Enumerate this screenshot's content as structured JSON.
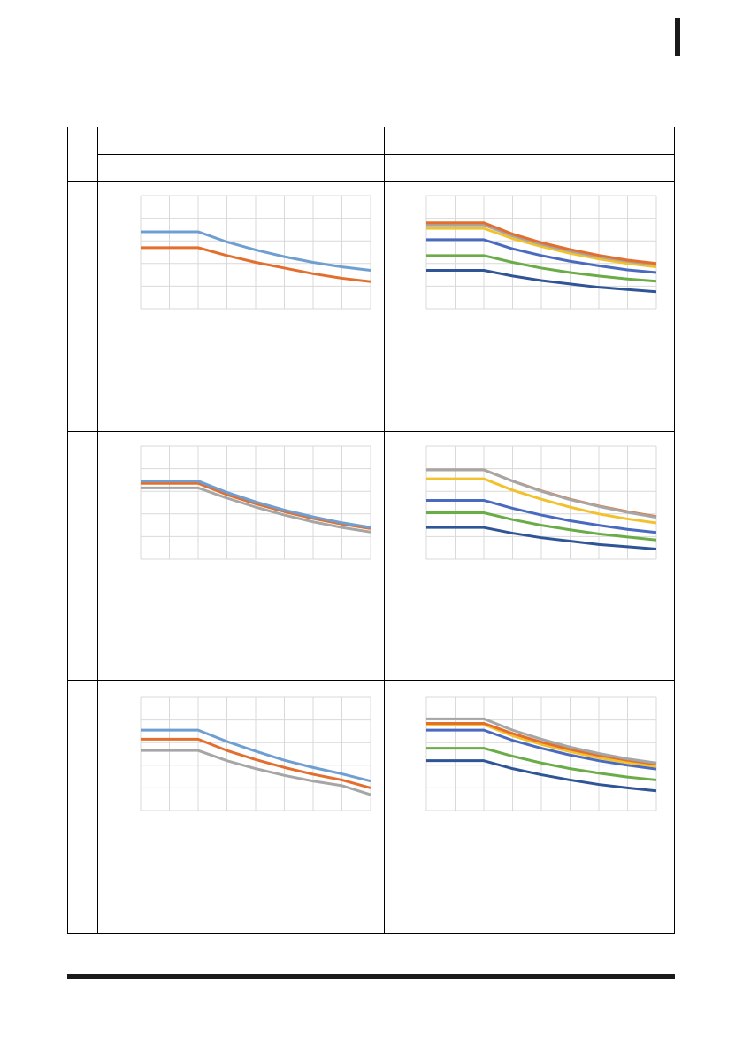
{
  "header": {
    "col_left": "",
    "col_right": "",
    "sub_left": "",
    "sub_right": ""
  },
  "rows": [
    {
      "label": "",
      "left_caption": "",
      "right_caption": ""
    },
    {
      "label": "",
      "left_caption": "",
      "right_caption": ""
    },
    {
      "label": "",
      "left_caption": "",
      "right_caption": ""
    }
  ],
  "colors": {
    "blue": "#6f9fd1",
    "orange": "#e36f2e",
    "gray": "#a6a6a6",
    "yellow": "#f2c12e",
    "darkblue": "#4a6ac0",
    "green": "#6aac47",
    "navy": "#2f5597",
    "grid": "#d9d9d9"
  },
  "chart_data": [
    {
      "type": "line",
      "x": [
        0,
        1,
        2,
        3,
        4,
        5,
        6,
        7,
        8
      ],
      "ylim": [
        0,
        5
      ],
      "series": [
        {
          "color": "orange",
          "values": [
            2.7,
            2.7,
            2.7,
            2.35,
            2.05,
            1.8,
            1.55,
            1.35,
            1.2
          ]
        },
        {
          "color": "blue",
          "values": [
            3.4,
            3.4,
            3.4,
            2.95,
            2.6,
            2.3,
            2.05,
            1.85,
            1.7
          ]
        }
      ]
    },
    {
      "type": "line",
      "x": [
        0,
        1,
        2,
        3,
        4,
        5,
        6,
        7,
        8
      ],
      "ylim": [
        0,
        5
      ],
      "series": [
        {
          "color": "navy",
          "values": [
            1.7,
            1.7,
            1.7,
            1.45,
            1.25,
            1.1,
            0.95,
            0.85,
            0.75
          ]
        },
        {
          "color": "green",
          "values": [
            2.35,
            2.35,
            2.35,
            2.05,
            1.8,
            1.6,
            1.45,
            1.32,
            1.22
          ]
        },
        {
          "color": "darkblue",
          "values": [
            3.05,
            3.05,
            3.05,
            2.65,
            2.35,
            2.1,
            1.9,
            1.72,
            1.6
          ]
        },
        {
          "color": "yellow",
          "values": [
            3.55,
            3.55,
            3.55,
            3.1,
            2.75,
            2.45,
            2.2,
            2.0,
            1.85
          ]
        },
        {
          "color": "gray",
          "values": [
            3.7,
            3.7,
            3.7,
            3.22,
            2.85,
            2.55,
            2.3,
            2.1,
            1.95
          ]
        },
        {
          "color": "orange",
          "values": [
            3.8,
            3.8,
            3.8,
            3.3,
            2.92,
            2.62,
            2.36,
            2.15,
            2.0
          ]
        }
      ]
    },
    {
      "type": "line",
      "x": [
        0,
        1,
        2,
        3,
        4,
        5,
        6,
        7,
        8
      ],
      "ylim": [
        0,
        5
      ],
      "series": [
        {
          "color": "gray",
          "values": [
            3.15,
            3.15,
            3.15,
            2.7,
            2.3,
            1.95,
            1.65,
            1.4,
            1.2
          ]
        },
        {
          "color": "orange",
          "values": [
            3.35,
            3.35,
            3.35,
            2.85,
            2.45,
            2.1,
            1.8,
            1.55,
            1.35
          ]
        },
        {
          "color": "blue",
          "values": [
            3.45,
            3.45,
            3.45,
            2.95,
            2.53,
            2.17,
            1.87,
            1.61,
            1.4
          ]
        }
      ]
    },
    {
      "type": "line",
      "x": [
        0,
        1,
        2,
        3,
        4,
        5,
        6,
        7,
        8
      ],
      "ylim": [
        0,
        5
      ],
      "series": [
        {
          "color": "navy",
          "values": [
            1.4,
            1.4,
            1.4,
            1.15,
            0.95,
            0.8,
            0.65,
            0.55,
            0.45
          ]
        },
        {
          "color": "green",
          "values": [
            2.05,
            2.05,
            2.05,
            1.75,
            1.5,
            1.3,
            1.12,
            0.98,
            0.85
          ]
        },
        {
          "color": "darkblue",
          "values": [
            2.6,
            2.6,
            2.6,
            2.25,
            1.95,
            1.7,
            1.5,
            1.32,
            1.18
          ]
        },
        {
          "color": "yellow",
          "values": [
            3.55,
            3.55,
            3.55,
            3.05,
            2.65,
            2.3,
            2.0,
            1.78,
            1.6
          ]
        },
        {
          "color": "orange",
          "values": [
            3.95,
            3.95,
            3.95,
            3.45,
            3.02,
            2.65,
            2.35,
            2.1,
            1.88
          ]
        },
        {
          "color": "gray",
          "values": [
            3.95,
            3.95,
            3.95,
            3.45,
            3.0,
            2.63,
            2.33,
            2.07,
            1.85
          ]
        }
      ]
    },
    {
      "type": "line",
      "x": [
        0,
        1,
        2,
        3,
        4,
        5,
        6,
        7,
        8
      ],
      "ylim": [
        0,
        5
      ],
      "series": [
        {
          "color": "gray",
          "values": [
            2.65,
            2.65,
            2.65,
            2.2,
            1.85,
            1.55,
            1.3,
            1.1,
            0.7
          ]
        },
        {
          "color": "orange",
          "values": [
            3.15,
            3.15,
            3.15,
            2.65,
            2.25,
            1.9,
            1.6,
            1.35,
            1.0
          ]
        },
        {
          "color": "blue",
          "values": [
            3.55,
            3.55,
            3.55,
            3.05,
            2.62,
            2.22,
            1.9,
            1.62,
            1.3
          ]
        }
      ]
    },
    {
      "type": "line",
      "x": [
        0,
        1,
        2,
        3,
        4,
        5,
        6,
        7,
        8
      ],
      "ylim": [
        0,
        5
      ],
      "series": [
        {
          "color": "navy",
          "values": [
            2.2,
            2.2,
            2.2,
            1.85,
            1.58,
            1.35,
            1.15,
            1.0,
            0.87
          ]
        },
        {
          "color": "green",
          "values": [
            2.75,
            2.75,
            2.75,
            2.4,
            2.1,
            1.85,
            1.65,
            1.48,
            1.35
          ]
        },
        {
          "color": "darkblue",
          "values": [
            3.55,
            3.55,
            3.55,
            3.1,
            2.75,
            2.45,
            2.2,
            2.0,
            1.83
          ]
        },
        {
          "color": "yellow",
          "values": [
            3.8,
            3.8,
            3.8,
            3.3,
            2.92,
            2.6,
            2.33,
            2.12,
            1.95
          ]
        },
        {
          "color": "orange",
          "values": [
            3.85,
            3.85,
            3.85,
            3.4,
            3.02,
            2.7,
            2.44,
            2.22,
            2.05
          ]
        },
        {
          "color": "gray",
          "values": [
            4.05,
            4.05,
            4.05,
            3.55,
            3.15,
            2.8,
            2.52,
            2.28,
            2.1
          ]
        }
      ]
    }
  ]
}
